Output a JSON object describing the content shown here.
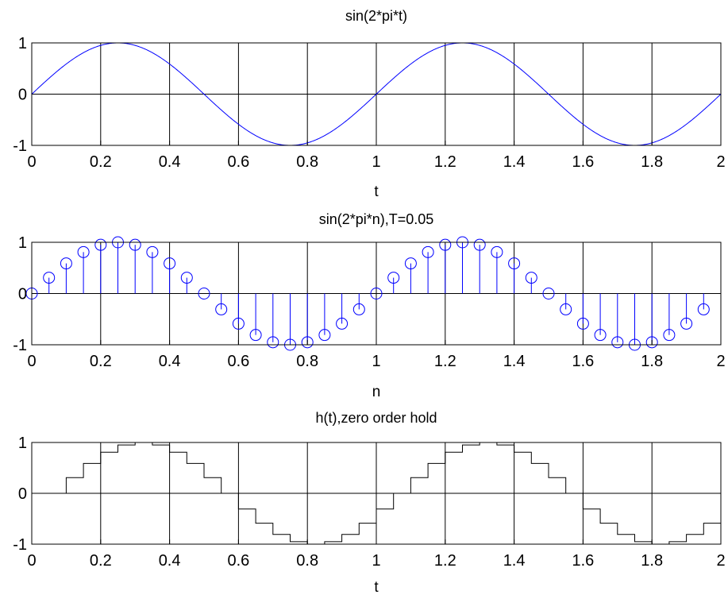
{
  "figure": {
    "background": "#ffffff"
  },
  "chart_data": [
    {
      "type": "line",
      "title": "sin(2*pi*t)",
      "xlabel": "t",
      "ylabel": "",
      "function": "sin(2*pi*t)",
      "xlim": [
        0,
        2
      ],
      "ylim": [
        -1,
        1
      ],
      "xticks": [
        0,
        0.2,
        0.4,
        0.6,
        0.8,
        1,
        1.2,
        1.4,
        1.6,
        1.8,
        2
      ],
      "xtick_labels": [
        "0",
        "0.2",
        "0.4",
        "0.6",
        "0.8",
        "1",
        "1.2",
        "1.4",
        "1.6",
        "1.8",
        "2"
      ],
      "yticks": [
        -1,
        0,
        1
      ],
      "ytick_labels": [
        "-1",
        "0",
        "1"
      ],
      "grid": true,
      "color": "#0000ff",
      "series": [
        {
          "x": [
            0,
            0.05,
            0.1,
            0.15,
            0.2,
            0.25,
            0.3,
            0.35,
            0.4,
            0.45,
            0.5,
            0.55,
            0.6,
            0.65,
            0.7,
            0.75,
            0.8,
            0.85,
            0.9,
            0.95,
            1,
            1.05,
            1.1,
            1.15,
            1.2,
            1.25,
            1.3,
            1.35,
            1.4,
            1.45,
            1.5,
            1.55,
            1.6,
            1.65,
            1.7,
            1.75,
            1.8,
            1.85,
            1.9,
            1.95,
            2
          ],
          "y": [
            0,
            0.309,
            0.588,
            0.809,
            0.951,
            1,
            0.951,
            0.809,
            0.588,
            0.309,
            0,
            -0.309,
            -0.588,
            -0.809,
            -0.951,
            -1,
            -0.951,
            -0.809,
            -0.588,
            -0.309,
            0,
            0.309,
            0.588,
            0.809,
            0.951,
            1,
            0.951,
            0.809,
            0.588,
            0.309,
            0,
            -0.309,
            -0.588,
            -0.809,
            -0.951,
            -1,
            -0.951,
            -0.809,
            -0.588,
            -0.309,
            0
          ]
        }
      ]
    },
    {
      "type": "stem",
      "title": "sin(2*pi*n),T=0.05",
      "xlabel": "n",
      "ylabel": "",
      "xlim": [
        0,
        2
      ],
      "ylim": [
        -1,
        1
      ],
      "xticks": [
        0,
        0.2,
        0.4,
        0.6,
        0.8,
        1,
        1.2,
        1.4,
        1.6,
        1.8,
        2
      ],
      "xtick_labels": [
        "0",
        "0.2",
        "0.4",
        "0.6",
        "0.8",
        "1",
        "1.2",
        "1.4",
        "1.6",
        "1.8",
        "2"
      ],
      "yticks": [
        -1,
        0,
        1
      ],
      "ytick_labels": [
        "-1",
        "0",
        "1"
      ],
      "grid": true,
      "color": "#0000ff",
      "marker": "circle",
      "series": [
        {
          "x": [
            0,
            0.05,
            0.1,
            0.15,
            0.2,
            0.25,
            0.3,
            0.35,
            0.4,
            0.45,
            0.5,
            0.55,
            0.6,
            0.65,
            0.7,
            0.75,
            0.8,
            0.85,
            0.9,
            0.95,
            1,
            1.05,
            1.1,
            1.15,
            1.2,
            1.25,
            1.3,
            1.35,
            1.4,
            1.45,
            1.5,
            1.55,
            1.6,
            1.65,
            1.7,
            1.75,
            1.8,
            1.85,
            1.9,
            1.95
          ],
          "y": [
            0,
            0.309,
            0.588,
            0.809,
            0.951,
            1,
            0.951,
            0.809,
            0.588,
            0.309,
            0,
            -0.309,
            -0.588,
            -0.809,
            -0.951,
            -1,
            -0.951,
            -0.809,
            -0.588,
            -0.309,
            0,
            0.309,
            0.588,
            0.809,
            0.951,
            1,
            0.951,
            0.809,
            0.588,
            0.309,
            0,
            -0.309,
            -0.588,
            -0.809,
            -0.951,
            -1,
            -0.951,
            -0.809,
            -0.588,
            -0.309
          ]
        }
      ]
    },
    {
      "type": "step",
      "title": "h(t),zero order hold",
      "xlabel": "t",
      "ylabel": "",
      "xlim": [
        0,
        2
      ],
      "ylim": [
        -1,
        1
      ],
      "xticks": [
        0,
        0.2,
        0.4,
        0.6,
        0.8,
        1,
        1.2,
        1.4,
        1.6,
        1.8,
        2
      ],
      "xtick_labels": [
        "0",
        "0.2",
        "0.4",
        "0.6",
        "0.8",
        "1",
        "1.2",
        "1.4",
        "1.6",
        "1.8",
        "2"
      ],
      "yticks": [
        -1,
        0,
        1
      ],
      "ytick_labels": [
        "-1",
        "0",
        "1"
      ],
      "grid": true,
      "color": "#000000",
      "series": [
        {
          "x": [
            0.05,
            0.1,
            0.15,
            0.2,
            0.25,
            0.3,
            0.35,
            0.4,
            0.45,
            0.5,
            0.55,
            0.6,
            0.65,
            0.7,
            0.75,
            0.8,
            0.85,
            0.9,
            0.95,
            1,
            1.05,
            1.1,
            1.15,
            1.2,
            1.25,
            1.3,
            1.35,
            1.4,
            1.45,
            1.5,
            1.55,
            1.6,
            1.65,
            1.7,
            1.75,
            1.8,
            1.85,
            1.9,
            1.95,
            2
          ],
          "y": [
            0,
            0.309,
            0.588,
            0.809,
            0.951,
            1,
            0.951,
            0.809,
            0.588,
            0.309,
            0,
            -0.309,
            -0.588,
            -0.809,
            -0.951,
            -1,
            -0.951,
            -0.809,
            -0.588,
            -0.309,
            0,
            0.309,
            0.588,
            0.809,
            0.951,
            1,
            0.951,
            0.809,
            0.588,
            0.309,
            0,
            -0.309,
            -0.588,
            -0.809,
            -0.951,
            -1,
            -0.951,
            -0.809,
            -0.588,
            -0.309
          ]
        }
      ]
    }
  ]
}
